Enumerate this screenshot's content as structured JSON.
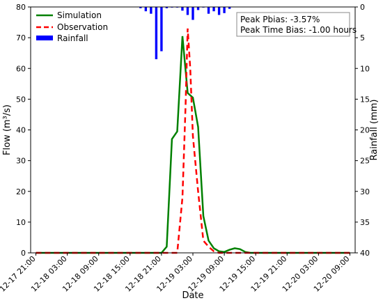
{
  "chart_data": {
    "type": "line",
    "xlabel": "Date",
    "ylabel": "Flow (m³/s)",
    "y2label": "Rainfall (mm)",
    "ylim": [
      0,
      80
    ],
    "y2lim": [
      0,
      40
    ],
    "y2_inverted": true,
    "yticks": [
      0,
      10,
      20,
      30,
      40,
      50,
      60,
      70,
      80
    ],
    "y2ticks": [
      0,
      5,
      10,
      15,
      20,
      25,
      30,
      35,
      40
    ],
    "x_range_hours": [
      -1,
      61
    ],
    "x_ticks": [
      {
        "h": 0,
        "label": "12-17 21:00"
      },
      {
        "h": 6,
        "label": "12-18 03:00"
      },
      {
        "h": 12,
        "label": "12-18 09:00"
      },
      {
        "h": 18,
        "label": "12-18 15:00"
      },
      {
        "h": 24,
        "label": "12-18 21:00"
      },
      {
        "h": 30,
        "label": "12-19 03:00"
      },
      {
        "h": 36,
        "label": "12-19 09:00"
      },
      {
        "h": 42,
        "label": "12-19 15:00"
      },
      {
        "h": 48,
        "label": "12-19 21:00"
      },
      {
        "h": 54,
        "label": "12-20 03:00"
      },
      {
        "h": 60,
        "label": "12-20 09:00"
      }
    ],
    "legend_position": "top-left",
    "series": [
      {
        "name": "Simulation",
        "kind": "line",
        "color": "#008000",
        "style": "solid",
        "points": [
          [
            0,
            0
          ],
          [
            22,
            0
          ],
          [
            23,
            0
          ],
          [
            24,
            0
          ],
          [
            25,
            2
          ],
          [
            26,
            37
          ],
          [
            27,
            39.5
          ],
          [
            28,
            70.5
          ],
          [
            29,
            52
          ],
          [
            30,
            50.5
          ],
          [
            31,
            41
          ],
          [
            32,
            12
          ],
          [
            33,
            4
          ],
          [
            34,
            1.5
          ],
          [
            35,
            0.5
          ],
          [
            36,
            0.3
          ],
          [
            37,
            1
          ],
          [
            38,
            1.5
          ],
          [
            39,
            1.2
          ],
          [
            40,
            0.3
          ],
          [
            41,
            0
          ],
          [
            60,
            0
          ]
        ]
      },
      {
        "name": "Observation",
        "kind": "line",
        "color": "#ff0000",
        "style": "dashed",
        "points": [
          [
            0,
            0
          ],
          [
            25,
            0
          ],
          [
            27,
            0
          ],
          [
            28,
            18
          ],
          [
            28.6,
            48
          ],
          [
            29,
            73
          ],
          [
            29.5,
            60
          ],
          [
            30,
            38
          ],
          [
            31,
            20
          ],
          [
            32,
            4
          ],
          [
            33,
            2
          ],
          [
            34,
            0.5
          ],
          [
            35,
            0
          ],
          [
            60,
            0
          ]
        ]
      },
      {
        "name": "Rainfall",
        "kind": "bar",
        "axis": "y2",
        "color": "#0000ff",
        "bars": [
          [
            20,
            0.2
          ],
          [
            21,
            0.7
          ],
          [
            22,
            1.1
          ],
          [
            23,
            8.5
          ],
          [
            24,
            7.2
          ],
          [
            25,
            0.2
          ],
          [
            26,
            0.1
          ],
          [
            27,
            0.1
          ],
          [
            28,
            0.6
          ],
          [
            29,
            1.3
          ],
          [
            30,
            2.1
          ],
          [
            31,
            0.5
          ],
          [
            32,
            0.1
          ],
          [
            33,
            1.1
          ],
          [
            34,
            0.7
          ],
          [
            35,
            1.3
          ],
          [
            36,
            1.0
          ],
          [
            37,
            0.3
          ]
        ]
      }
    ],
    "annotation": {
      "line1": "Peak Pbias: -3.57%",
      "line2": "Peak Time Bias: -1.00 hours"
    }
  }
}
